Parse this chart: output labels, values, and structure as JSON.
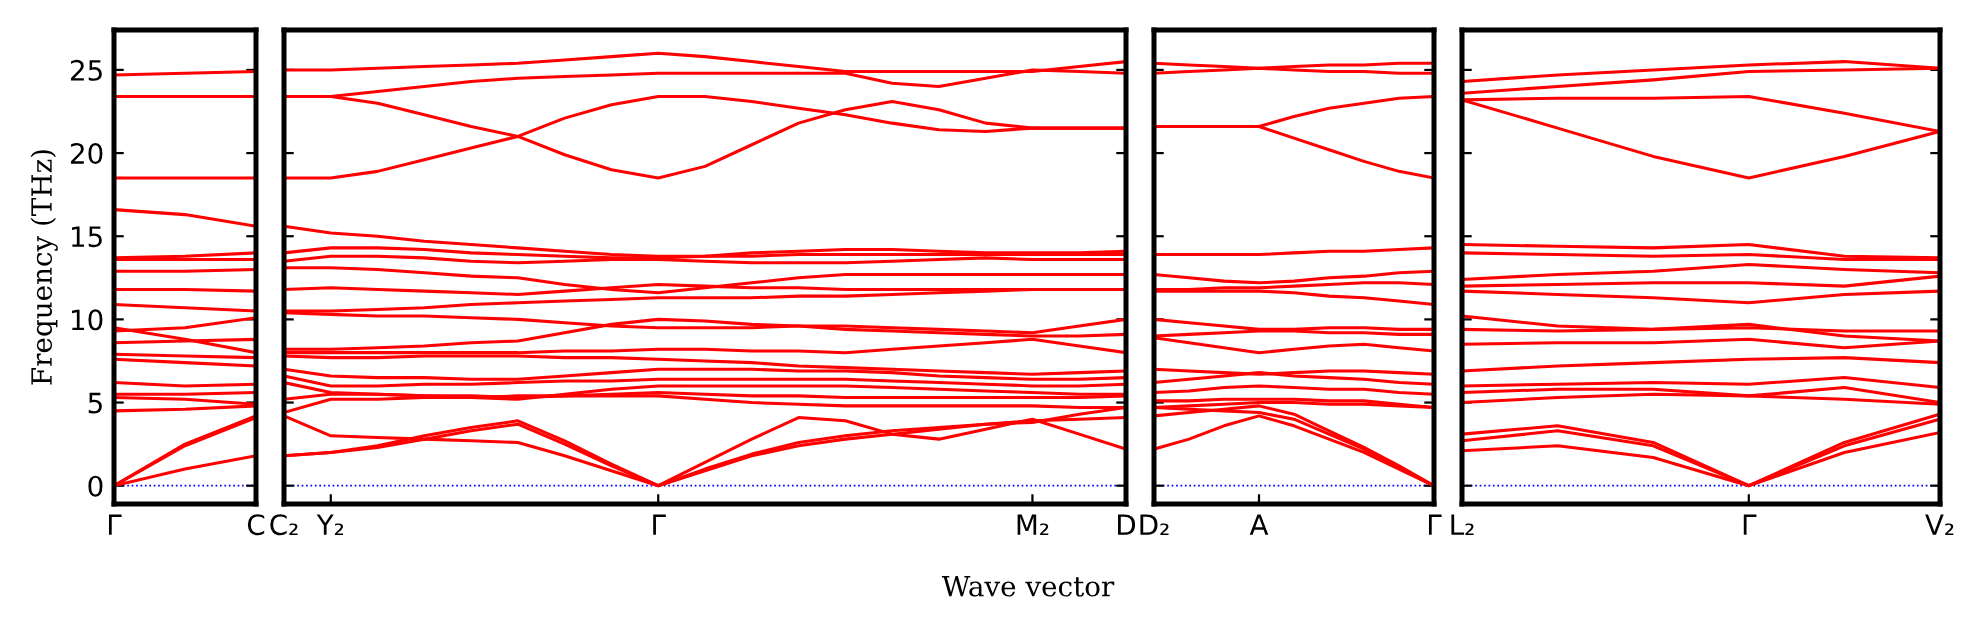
{
  "chart_data": [
    {
      "type": "line",
      "ylabel": "Frequency (THz)",
      "categories": [
        "Γ",
        null,
        "C"
      ],
      "ylim": [
        -1.1,
        27.4
      ],
      "yticks": [
        0,
        5,
        10,
        15,
        20,
        25
      ],
      "ref_lines": [
        {
          "axis": "y",
          "value": 0,
          "color": "#0000ff",
          "line_style": "dotted"
        }
      ],
      "marker": "none",
      "line_style": "solid",
      "series": [
        {
          "color": "#ff0000",
          "values": [
            24.7,
            24.8,
            24.9
          ]
        },
        {
          "color": "#ff0000",
          "values": [
            23.4,
            23.4,
            23.4
          ]
        },
        {
          "color": "#ff0000",
          "values": [
            18.5,
            18.5,
            18.5
          ]
        },
        {
          "color": "#ff0000",
          "values": [
            16.6,
            16.3,
            15.6
          ]
        },
        {
          "color": "#ff0000",
          "values": [
            13.7,
            13.8,
            14.0
          ]
        },
        {
          "color": "#ff0000",
          "values": [
            13.6,
            13.6,
            13.6
          ]
        },
        {
          "color": "#ff0000",
          "values": [
            12.9,
            12.9,
            13.0
          ]
        },
        {
          "color": "#ff0000",
          "values": [
            11.8,
            11.8,
            11.7
          ]
        },
        {
          "color": "#ff0000",
          "values": [
            10.9,
            10.7,
            10.5
          ]
        },
        {
          "color": "#ff0000",
          "values": [
            9.5,
            8.8,
            8.0
          ]
        },
        {
          "color": "#ff0000",
          "values": [
            9.3,
            9.5,
            10.1
          ]
        },
        {
          "color": "#ff0000",
          "values": [
            8.6,
            8.7,
            8.8
          ]
        },
        {
          "color": "#ff0000",
          "values": [
            7.9,
            7.8,
            7.7
          ]
        },
        {
          "color": "#ff0000",
          "values": [
            7.6,
            7.4,
            7.2
          ]
        },
        {
          "color": "#ff0000",
          "values": [
            6.2,
            6.0,
            6.1
          ]
        },
        {
          "color": "#ff0000",
          "values": [
            5.5,
            5.5,
            5.6
          ]
        },
        {
          "color": "#ff0000",
          "values": [
            5.3,
            5.2,
            4.9
          ]
        },
        {
          "color": "#ff0000",
          "values": [
            4.5,
            4.6,
            4.8
          ]
        },
        {
          "color": "#ff0000",
          "values": [
            0,
            2.5,
            4.2
          ]
        },
        {
          "color": "#ff0000",
          "values": [
            0,
            2.4,
            4.1
          ]
        },
        {
          "color": "#ff0000",
          "values": [
            0,
            1.0,
            1.8
          ]
        }
      ]
    },
    {
      "type": "line",
      "xlabel": "Wave vector",
      "categories": [
        "C₂",
        "Y₂",
        null,
        null,
        null,
        null,
        null,
        null,
        "Γ",
        null,
        null,
        null,
        null,
        null,
        null,
        null,
        "M₂",
        null,
        "D"
      ],
      "ylim": [
        -1.1,
        27.4
      ],
      "yticks": [
        0,
        5,
        10,
        15,
        20,
        25
      ],
      "tick_labels": "x",
      "ref_lines": [
        {
          "axis": "y",
          "value": 0,
          "color": "#0000ff",
          "line_style": "dotted"
        }
      ],
      "marker": "none",
      "line_style": "solid",
      "series": [
        {
          "color": "#ff0000",
          "values": [
            25.0,
            25.0,
            25.1,
            25.2,
            25.3,
            25.4,
            25.6,
            25.8,
            26.0,
            25.8,
            25.5,
            25.2,
            24.9,
            24.9,
            24.9,
            24.9,
            24.9,
            25.2,
            25.5
          ]
        },
        {
          "color": "#ff0000",
          "values": [
            23.4,
            23.4,
            23.7,
            24.0,
            24.3,
            24.5,
            24.6,
            24.7,
            24.8,
            24.8,
            24.8,
            24.8,
            24.8,
            24.2,
            24.0,
            24.5,
            25.0,
            24.9,
            24.8
          ]
        },
        {
          "color": "#ff0000",
          "values": [
            23.4,
            23.4,
            23.0,
            22.3,
            21.6,
            21.0,
            19.9,
            19.0,
            18.5,
            19.2,
            20.5,
            21.8,
            22.6,
            23.1,
            22.6,
            21.8,
            21.5,
            21.5,
            21.5
          ]
        },
        {
          "color": "#ff0000",
          "values": [
            18.5,
            18.5,
            18.9,
            19.6,
            20.3,
            21.0,
            22.1,
            22.9,
            23.4,
            23.4,
            23.1,
            22.7,
            22.3,
            21.8,
            21.4,
            21.3,
            21.5,
            21.5,
            21.5
          ]
        },
        {
          "color": "#ff0000",
          "values": [
            15.6,
            15.2,
            15.0,
            14.7,
            14.5,
            14.3,
            14.1,
            13.9,
            13.8,
            13.8,
            13.8,
            13.9,
            13.9,
            13.9,
            13.9,
            13.9,
            13.9,
            13.9,
            13.9
          ]
        },
        {
          "color": "#ff0000",
          "values": [
            14.0,
            14.3,
            14.3,
            14.2,
            14.0,
            13.9,
            13.8,
            13.7,
            13.7,
            13.8,
            14.0,
            14.1,
            14.2,
            14.2,
            14.1,
            14.0,
            14.0,
            14.0,
            14.1
          ]
        },
        {
          "color": "#ff0000",
          "values": [
            13.5,
            13.8,
            13.8,
            13.7,
            13.5,
            13.4,
            13.5,
            13.6,
            13.6,
            13.5,
            13.4,
            13.4,
            13.4,
            13.5,
            13.6,
            13.7,
            13.6,
            13.6,
            13.6
          ]
        },
        {
          "color": "#ff0000",
          "values": [
            13.1,
            13.1,
            13.0,
            12.8,
            12.6,
            12.5,
            12.1,
            11.8,
            11.6,
            11.9,
            12.2,
            12.5,
            12.7,
            12.7,
            12.7,
            12.7,
            12.7,
            12.7,
            12.7
          ]
        },
        {
          "color": "#ff0000",
          "values": [
            11.8,
            11.9,
            11.8,
            11.7,
            11.6,
            11.5,
            11.7,
            11.9,
            12.1,
            12.0,
            11.9,
            11.9,
            11.8,
            11.8,
            11.8,
            11.8,
            11.8,
            11.8,
            11.8
          ]
        },
        {
          "color": "#ff0000",
          "values": [
            10.5,
            10.5,
            10.6,
            10.7,
            10.9,
            11.0,
            11.1,
            11.2,
            11.3,
            11.3,
            11.3,
            11.4,
            11.4,
            11.5,
            11.6,
            11.7,
            11.8,
            11.8,
            11.8
          ]
        },
        {
          "color": "#ff0000",
          "values": [
            10.4,
            10.3,
            10.2,
            10.2,
            10.1,
            10.0,
            9.8,
            9.6,
            9.5,
            9.5,
            9.5,
            9.6,
            9.6,
            9.5,
            9.4,
            9.3,
            9.2,
            9.6,
            10.0
          ]
        },
        {
          "color": "#ff0000",
          "values": [
            8.2,
            8.2,
            8.3,
            8.4,
            8.6,
            8.7,
            9.2,
            9.7,
            10.0,
            9.9,
            9.7,
            9.6,
            9.4,
            9.3,
            9.2,
            9.1,
            9.0,
            9.0,
            9.1
          ]
        },
        {
          "color": "#ff0000",
          "values": [
            8.0,
            8.0,
            8.0,
            8.0,
            8.0,
            8.0,
            8.1,
            8.1,
            8.2,
            8.2,
            8.1,
            8.1,
            8.0,
            8.2,
            8.4,
            8.6,
            8.8,
            8.4,
            8.0
          ]
        },
        {
          "color": "#ff0000",
          "values": [
            7.8,
            7.7,
            7.7,
            7.8,
            7.8,
            7.8,
            7.7,
            7.7,
            7.6,
            7.5,
            7.4,
            7.2,
            7.1,
            7.0,
            6.9,
            6.8,
            6.7,
            6.8,
            6.9
          ]
        },
        {
          "color": "#ff0000",
          "values": [
            7.0,
            6.6,
            6.5,
            6.5,
            6.4,
            6.4,
            6.6,
            6.8,
            7.0,
            7.0,
            7.0,
            6.9,
            6.9,
            6.8,
            6.6,
            6.5,
            6.4,
            6.4,
            6.5
          ]
        },
        {
          "color": "#ff0000",
          "values": [
            6.6,
            6.0,
            6.0,
            6.1,
            6.1,
            6.2,
            6.3,
            6.3,
            6.4,
            6.4,
            6.4,
            6.4,
            6.4,
            6.3,
            6.2,
            6.1,
            6.0,
            6.0,
            6.1
          ]
        },
        {
          "color": "#ff0000",
          "values": [
            6.2,
            5.6,
            5.5,
            5.4,
            5.3,
            5.2,
            5.5,
            5.8,
            6.0,
            6.0,
            6.0,
            6.0,
            6.0,
            5.9,
            5.8,
            5.7,
            5.6,
            5.5,
            5.5
          ]
        },
        {
          "color": "#ff0000",
          "values": [
            5.2,
            5.5,
            5.5,
            5.4,
            5.4,
            5.3,
            5.4,
            5.5,
            5.6,
            5.5,
            5.4,
            5.4,
            5.3,
            5.3,
            5.3,
            5.3,
            5.3,
            5.3,
            5.4
          ]
        },
        {
          "color": "#ff0000",
          "values": [
            4.4,
            5.2,
            5.2,
            5.3,
            5.3,
            5.4,
            5.4,
            5.4,
            5.4,
            5.2,
            5.0,
            4.9,
            4.8,
            4.8,
            4.8,
            4.8,
            4.8,
            4.7,
            4.7
          ]
        },
        {
          "color": "#ff0000",
          "values": [
            4.2,
            3.0,
            2.9,
            2.8,
            2.7,
            2.6,
            1.8,
            0.9,
            0,
            1.4,
            2.8,
            4.1,
            3.9,
            3.1,
            2.8,
            3.4,
            4.0,
            3.1,
            2.2
          ]
        },
        {
          "color": "#ff0000",
          "values": [
            1.8,
            2.0,
            2.4,
            3.0,
            3.5,
            3.9,
            2.7,
            1.3,
            0,
            1.0,
            1.9,
            2.6,
            3.0,
            3.3,
            3.5,
            3.7,
            3.8,
            4.3,
            4.7
          ]
        },
        {
          "color": "#ff0000",
          "values": [
            1.8,
            2.0,
            2.3,
            2.8,
            3.3,
            3.7,
            2.5,
            1.2,
            0,
            0.9,
            1.8,
            2.4,
            2.8,
            3.1,
            3.4,
            3.7,
            3.9,
            4.0,
            4.1
          ]
        }
      ]
    },
    {
      "type": "line",
      "categories": [
        "D₂",
        null,
        null,
        "A",
        null,
        null,
        null,
        null,
        "Γ"
      ],
      "ylim": [
        -1.1,
        27.4
      ],
      "yticks": [
        0,
        5,
        10,
        15,
        20,
        25
      ],
      "tick_labels": "x",
      "ref_lines": [
        {
          "axis": "y",
          "value": 0,
          "color": "#0000ff",
          "line_style": "dotted"
        }
      ],
      "marker": "none",
      "line_style": "solid",
      "series": [
        {
          "color": "#ff0000",
          "values": [
            25.4,
            25.3,
            25.2,
            25.1,
            25.2,
            25.3,
            25.3,
            25.4,
            25.4
          ]
        },
        {
          "color": "#ff0000",
          "values": [
            24.8,
            24.9,
            25.0,
            25.1,
            25.0,
            24.9,
            24.9,
            24.8,
            24.8
          ]
        },
        {
          "color": "#ff0000",
          "values": [
            21.6,
            21.6,
            21.6,
            21.6,
            22.2,
            22.7,
            23.0,
            23.3,
            23.4
          ]
        },
        {
          "color": "#ff0000",
          "values": [
            21.6,
            21.6,
            21.6,
            21.6,
            20.9,
            20.2,
            19.5,
            18.9,
            18.5
          ]
        },
        {
          "color": "#ff0000",
          "values": [
            13.9,
            13.9,
            13.9,
            13.9,
            14.0,
            14.1,
            14.1,
            14.2,
            14.3
          ]
        },
        {
          "color": "#ff0000",
          "values": [
            12.7,
            12.5,
            12.3,
            12.2,
            12.3,
            12.5,
            12.6,
            12.8,
            12.9
          ]
        },
        {
          "color": "#ff0000",
          "values": [
            11.8,
            11.8,
            11.9,
            11.9,
            12.0,
            12.1,
            12.2,
            12.2,
            12.1
          ]
        },
        {
          "color": "#ff0000",
          "values": [
            11.7,
            11.7,
            11.7,
            11.7,
            11.6,
            11.4,
            11.3,
            11.1,
            10.9
          ]
        },
        {
          "color": "#ff0000",
          "values": [
            10.0,
            9.8,
            9.6,
            9.4,
            9.4,
            9.5,
            9.5,
            9.4,
            9.4
          ]
        },
        {
          "color": "#ff0000",
          "values": [
            9.0,
            9.1,
            9.2,
            9.3,
            9.3,
            9.2,
            9.2,
            9.1,
            9.1
          ]
        },
        {
          "color": "#ff0000",
          "values": [
            8.9,
            8.6,
            8.3,
            8.0,
            8.2,
            8.4,
            8.5,
            8.3,
            8.1
          ]
        },
        {
          "color": "#ff0000",
          "values": [
            7.0,
            6.9,
            6.8,
            6.7,
            6.8,
            6.9,
            6.9,
            6.8,
            6.7
          ]
        },
        {
          "color": "#ff0000",
          "values": [
            6.2,
            6.4,
            6.6,
            6.8,
            6.6,
            6.5,
            6.4,
            6.2,
            6.1
          ]
        },
        {
          "color": "#ff0000",
          "values": [
            5.6,
            5.7,
            5.9,
            6.0,
            5.9,
            5.8,
            5.8,
            5.6,
            5.5
          ]
        },
        {
          "color": "#ff0000",
          "values": [
            5.1,
            5.1,
            5.2,
            5.2,
            5.2,
            5.1,
            5.1,
            4.9,
            4.7
          ]
        },
        {
          "color": "#ff0000",
          "values": [
            4.7,
            4.8,
            4.9,
            5.0,
            5.0,
            4.9,
            4.9,
            4.8,
            4.7
          ]
        },
        {
          "color": "#ff0000",
          "values": [
            2.2,
            2.8,
            3.6,
            4.2,
            3.6,
            2.8,
            2.0,
            1.0,
            0
          ]
        },
        {
          "color": "#ff0000",
          "values": [
            4.2,
            4.4,
            4.6,
            4.8,
            4.3,
            3.3,
            2.3,
            1.2,
            0
          ]
        },
        {
          "color": "#ff0000",
          "values": [
            4.7,
            4.6,
            4.5,
            4.4,
            4.0,
            3.1,
            2.2,
            1.1,
            0
          ]
        }
      ]
    },
    {
      "type": "line",
      "categories": [
        "L₂",
        null,
        null,
        "Γ",
        null,
        "V₂"
      ],
      "ylim": [
        -1.1,
        27.4
      ],
      "yticks": [
        0,
        5,
        10,
        15,
        20,
        25
      ],
      "tick_labels": "x",
      "ref_lines": [
        {
          "axis": "y",
          "value": 0,
          "color": "#0000ff",
          "line_style": "dotted"
        }
      ],
      "marker": "none",
      "line_style": "solid",
      "series": [
        {
          "color": "#ff0000",
          "values": [
            24.3,
            24.7,
            25.0,
            25.3,
            25.5,
            25.1
          ]
        },
        {
          "color": "#ff0000",
          "values": [
            23.6,
            24.0,
            24.4,
            24.9,
            25.0,
            25.1
          ]
        },
        {
          "color": "#ff0000",
          "values": [
            23.2,
            23.3,
            23.3,
            23.4,
            22.4,
            21.3
          ]
        },
        {
          "color": "#ff0000",
          "values": [
            23.2,
            21.5,
            19.8,
            18.5,
            19.8,
            21.3
          ]
        },
        {
          "color": "#ff0000",
          "values": [
            14.5,
            14.4,
            14.3,
            14.5,
            13.8,
            13.7
          ]
        },
        {
          "color": "#ff0000",
          "values": [
            14.0,
            13.9,
            13.8,
            13.9,
            13.6,
            13.6
          ]
        },
        {
          "color": "#ff0000",
          "values": [
            12.4,
            12.7,
            12.9,
            13.3,
            13.0,
            12.8
          ]
        },
        {
          "color": "#ff0000",
          "values": [
            12.0,
            12.1,
            12.2,
            12.2,
            12.0,
            12.6
          ]
        },
        {
          "color": "#ff0000",
          "values": [
            11.7,
            11.5,
            11.3,
            11.0,
            11.5,
            11.7
          ]
        },
        {
          "color": "#ff0000",
          "values": [
            10.2,
            9.6,
            9.4,
            9.5,
            9.3,
            9.3
          ]
        },
        {
          "color": "#ff0000",
          "values": [
            9.4,
            9.3,
            9.4,
            9.7,
            9.0,
            8.7
          ]
        },
        {
          "color": "#ff0000",
          "values": [
            8.5,
            8.6,
            8.6,
            8.8,
            8.3,
            8.7
          ]
        },
        {
          "color": "#ff0000",
          "values": [
            6.9,
            7.2,
            7.4,
            7.6,
            7.7,
            7.4
          ]
        },
        {
          "color": "#ff0000",
          "values": [
            6.0,
            6.1,
            6.2,
            6.1,
            6.5,
            5.9
          ]
        },
        {
          "color": "#ff0000",
          "values": [
            5.6,
            5.8,
            5.8,
            5.4,
            5.9,
            5.0
          ]
        },
        {
          "color": "#ff0000",
          "values": [
            5.0,
            5.3,
            5.5,
            5.4,
            5.2,
            4.9
          ]
        },
        {
          "color": "#ff0000",
          "values": [
            3.1,
            3.6,
            2.6,
            0,
            2.6,
            4.3
          ]
        },
        {
          "color": "#ff0000",
          "values": [
            2.7,
            3.3,
            2.4,
            0,
            2.4,
            4.0
          ]
        },
        {
          "color": "#ff0000",
          "values": [
            2.1,
            2.4,
            1.7,
            0,
            2.0,
            3.2
          ]
        }
      ]
    }
  ]
}
